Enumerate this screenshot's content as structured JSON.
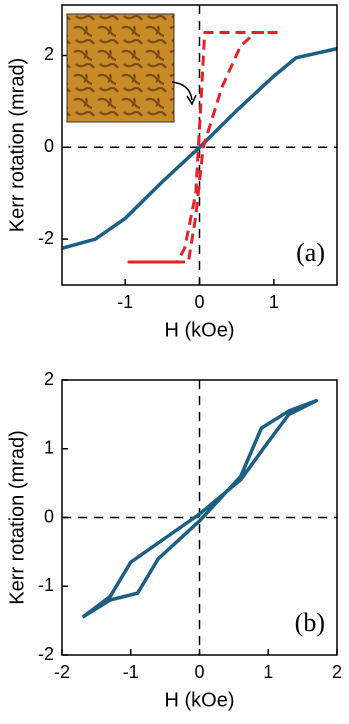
{
  "chart_data": [
    {
      "type": "line",
      "xlabel": "H (kOe)",
      "ylabel": "Kerr rotation (mrad)",
      "annotation": "(a)",
      "xlim": [
        -1.85,
        1.85
      ],
      "xticks": [
        -1,
        0,
        1
      ],
      "ylim": [
        -3,
        3.1
      ],
      "yticks": [
        -2,
        0,
        2
      ],
      "series": [
        {
          "color": "#1d5f84",
          "style": "solid",
          "x": [
            -1.85,
            -1.4,
            -1.0,
            -0.5,
            0,
            0.5,
            1.0,
            1.3,
            1.85
          ],
          "values": [
            -2.2,
            -2.0,
            -1.55,
            -0.75,
            0,
            0.8,
            1.55,
            1.95,
            2.15
          ]
        },
        {
          "color": "#e8202a",
          "style": "dashed",
          "x": [
            1.05,
            0.07,
            0.02,
            -0.05,
            -0.2,
            -0.3,
            -0.95,
            -0.15,
            -0.05,
            0.05,
            0.3,
            0.55,
            0.75,
            1.05
          ],
          "values": [
            2.5,
            2.5,
            1.0,
            -1.0,
            -2.2,
            -2.5,
            -2.5,
            -2.5,
            -1.5,
            0,
            1.3,
            2.2,
            2.5,
            2.5
          ]
        }
      ]
    },
    {
      "type": "line",
      "xlabel": "H (kOe)",
      "ylabel": "Kerr rotation (mrad)",
      "annotation": "(b)",
      "xlim": [
        -2,
        2
      ],
      "xticks": [
        -2,
        -1,
        0,
        1,
        2
      ],
      "ylim": [
        -2,
        2
      ],
      "yticks": [
        -2,
        -1,
        0,
        1,
        2
      ],
      "series": [
        {
          "color": "#1d5f84",
          "style": "solid",
          "x": [
            -1.7,
            -1.3,
            -1.0,
            -0.5,
            0,
            0.6,
            1.0,
            1.3,
            1.7,
            1.3,
            0.9,
            0.6,
            0,
            -0.6,
            -0.9,
            -1.3,
            -1.7
          ],
          "values": [
            -1.45,
            -1.15,
            -0.65,
            -0.3,
            0.05,
            0.55,
            1.1,
            1.5,
            1.7,
            1.55,
            1.3,
            0.6,
            -0.05,
            -0.6,
            -1.1,
            -1.2,
            -1.45
          ]
        }
      ]
    }
  ]
}
